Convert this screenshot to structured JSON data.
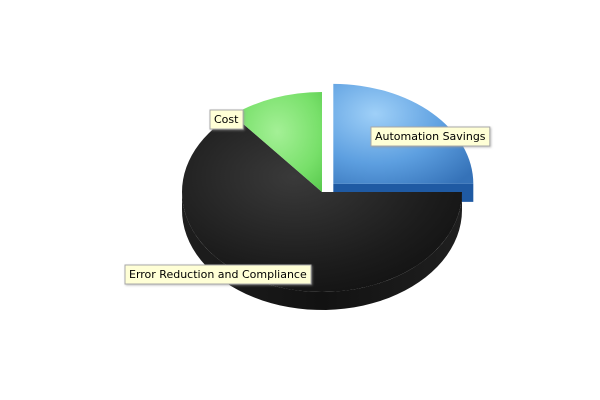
{
  "chart_data": {
    "type": "pie",
    "title": "",
    "style": "3d-exploded",
    "slices": [
      {
        "label": "Automation Savings",
        "value": 25,
        "color": "#4f93d8",
        "exploded": true
      },
      {
        "label": "Error Reduction and Compliance",
        "value": 64,
        "color": "#1b1b1b",
        "exploded": false
      },
      {
        "label": "Cost",
        "value": 11,
        "color": "#6fdc63",
        "exploded": false
      }
    ]
  }
}
